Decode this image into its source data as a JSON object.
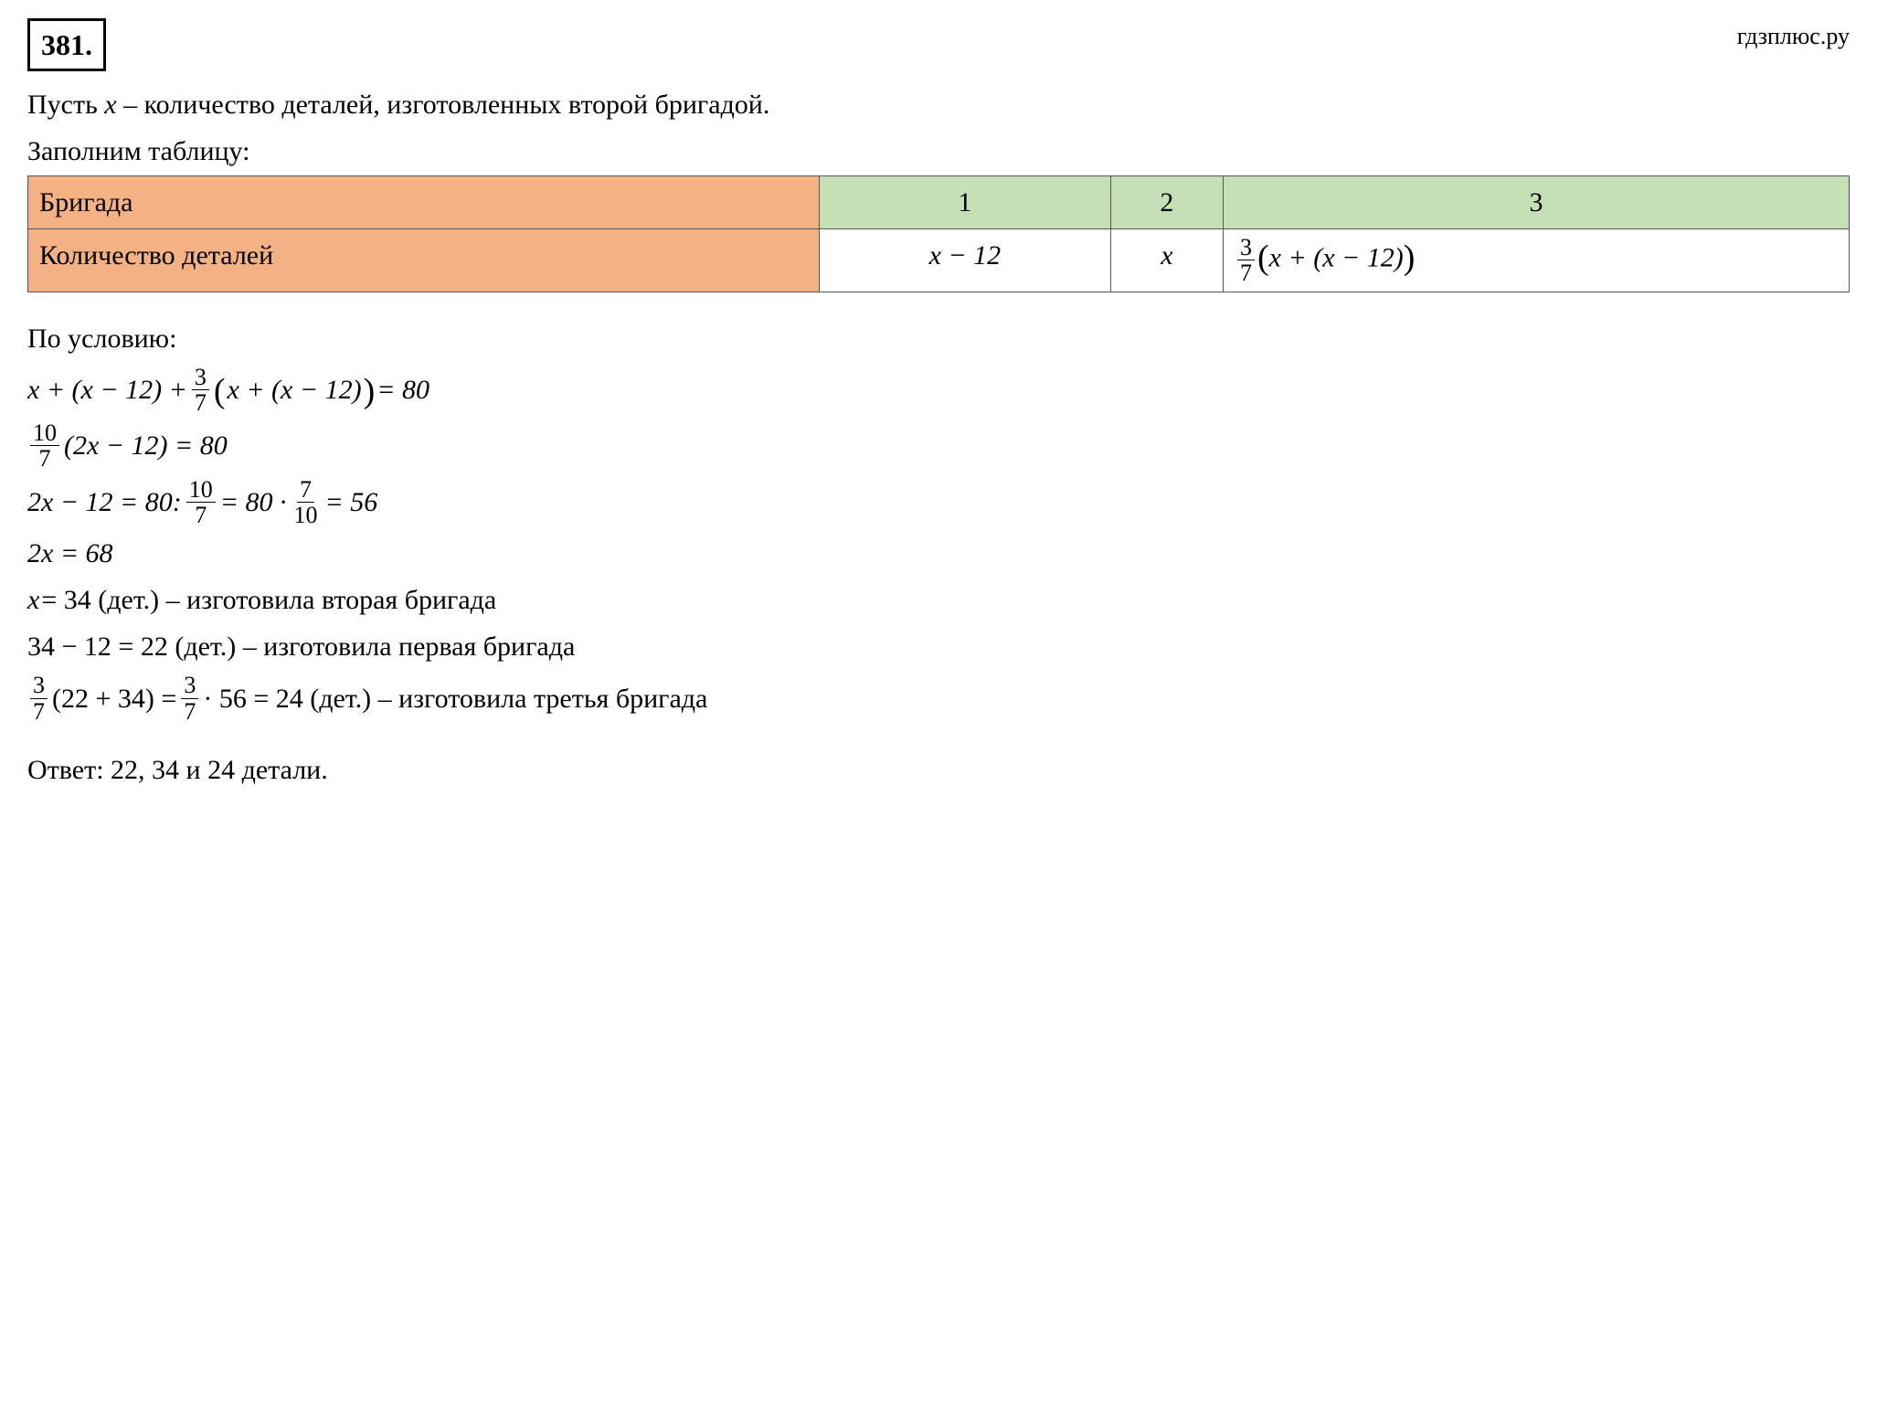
{
  "problem_number": "381.",
  "watermark": "гдзплюс.ру",
  "intro_line1_prefix": "Пусть ",
  "intro_line1_var": "x",
  "intro_line1_suffix": " – количество деталей, изготовленных второй бригадой.",
  "table_caption": "Заполним таблицу:",
  "table": {
    "header_row_label": "Бригада",
    "col_headers": [
      "1",
      "2",
      "3"
    ],
    "row2_label": "Количество деталей",
    "cell_1": "x − 12",
    "cell_2": "x",
    "cell_3_frac_num": "3",
    "cell_3_frac_den": "7",
    "cell_3_rest": "(x + (x − 12))",
    "colors": {
      "label_bg": "#f4b183",
      "header_bg": "#c5e0b4",
      "data_bg": "#ffffff",
      "border": "#555555"
    }
  },
  "condition_label": "По условию:",
  "eq1": {
    "part1": "x + (x − 12) + ",
    "frac_num": "3",
    "frac_den": "7",
    "part2": "(x + (x − 12))",
    "part3": " = 80"
  },
  "eq2": {
    "frac_num": "10",
    "frac_den": "7",
    "rest": "(2x − 12) = 80"
  },
  "eq3": {
    "part1": "2x − 12 = 80:",
    "frac1_num": "10",
    "frac1_den": "7",
    "part2": " = 80 · ",
    "frac2_num": "7",
    "frac2_den": "10",
    "part3": " = 56"
  },
  "eq4": "2x = 68",
  "eq5": "x = 34 (дет.) – изготовила вторая бригада",
  "eq6": "34 − 12 = 22 (дет.) – изготовила первая бригада",
  "eq7": {
    "frac1_num": "3",
    "frac1_den": "7",
    "part1": "(22 + 34) = ",
    "frac2_num": "3",
    "frac2_den": "7",
    "part2": " · 56 = 24 (дет.)  – изготовила третья бригада"
  },
  "answer": "Ответ: 22, 34 и 24 детали."
}
